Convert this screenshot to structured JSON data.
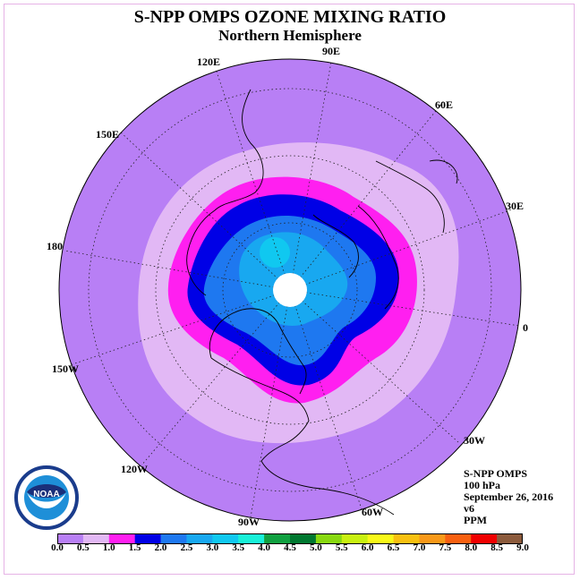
{
  "title": "S-NPP OMPS OZONE MIXING RATIO",
  "subtitle": "Northern Hemisphere",
  "longitude_labels": [
    "90E",
    "60E",
    "30E",
    "0",
    "30W",
    "60W",
    "90W",
    "120W",
    "150W",
    "180",
    "150E",
    "120E"
  ],
  "info": {
    "instrument": "S-NPP OMPS",
    "level": "100 hPa",
    "date": "September 26, 2016",
    "version": "v6",
    "units": "PPM"
  },
  "colorbar": {
    "ticks": [
      "0.0",
      "0.5",
      "1.0",
      "1.5",
      "2.0",
      "2.5",
      "3.0",
      "3.5",
      "4.0",
      "4.5",
      "5.0",
      "5.5",
      "6.0",
      "6.5",
      "7.0",
      "7.5",
      "8.0",
      "8.5",
      "9.0"
    ],
    "colors": [
      "#b87ff5",
      "#e2b8f5",
      "#ff1ff0",
      "#0000e6",
      "#1e78f0",
      "#18a8f0",
      "#10c8f0",
      "#18f0d8",
      "#10a040",
      "#007830",
      "#88d810",
      "#c8f010",
      "#f8f818",
      "#f8c010",
      "#f89818",
      "#f86010",
      "#f00000",
      "#8b5a3c"
    ]
  },
  "logo_text": "NOAA",
  "map_levels": [
    "0.0-0.5",
    "0.5-1.0",
    "1.0-1.5",
    "1.5-2.0",
    "2.0-2.5",
    "2.5-3.0"
  ]
}
